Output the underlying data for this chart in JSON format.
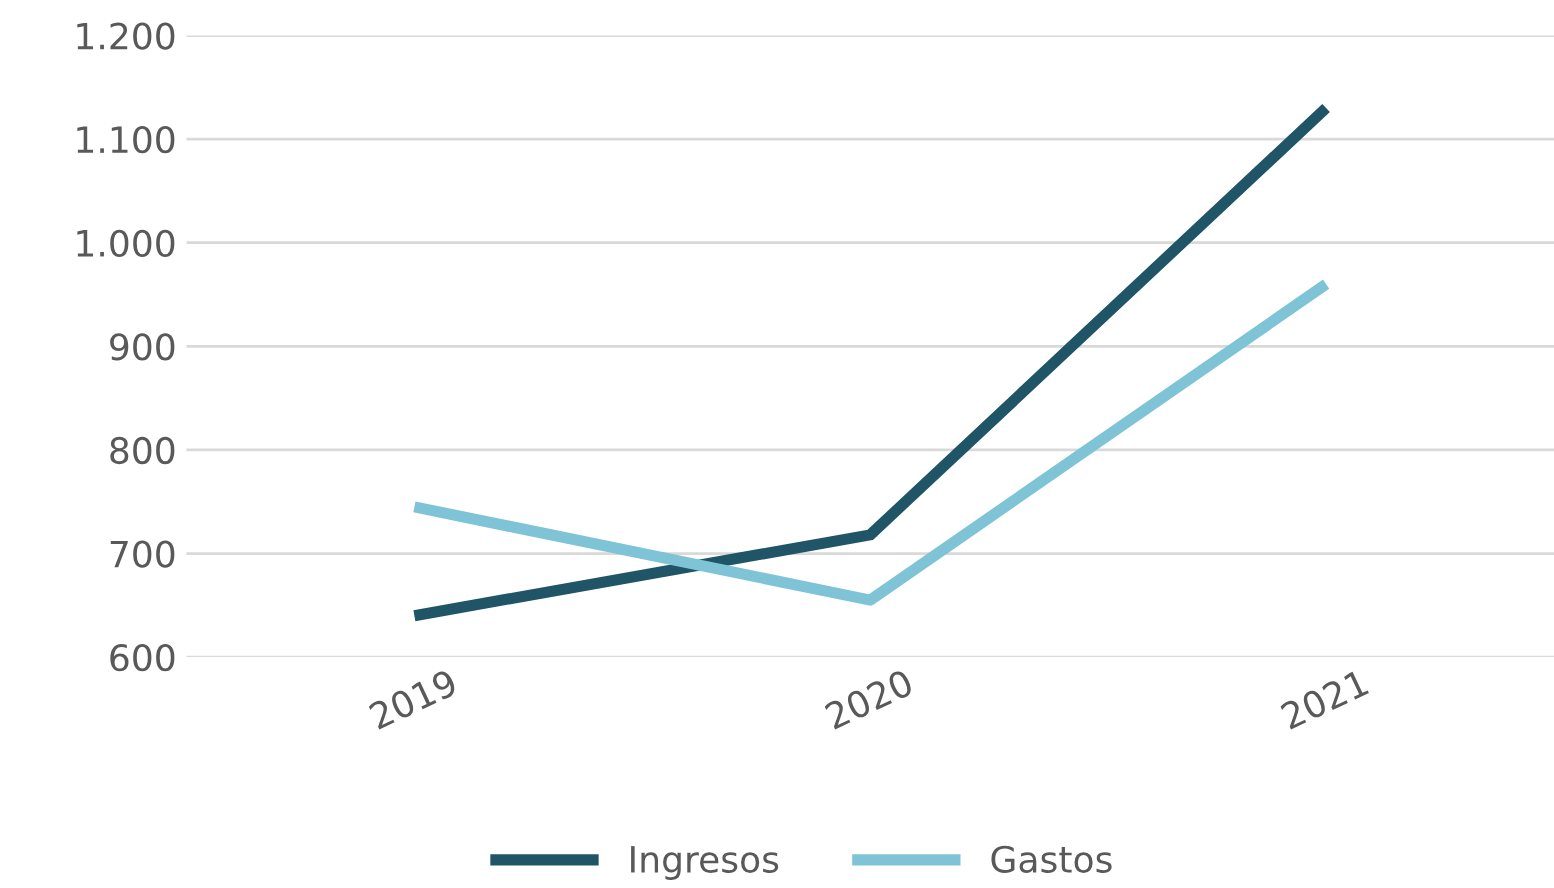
{
  "chart_data": {
    "type": "line",
    "categories": [
      "2019",
      "2020",
      "2021"
    ],
    "series": [
      {
        "name": "Ingresos",
        "color": "#1f5566",
        "values": [
          640,
          718,
          1130
        ]
      },
      {
        "name": "Gastos",
        "color": "#7fc4d6",
        "values": [
          745,
          655,
          960
        ]
      }
    ],
    "ylim": [
      600,
      1200
    ],
    "yticks": [
      600,
      700,
      800,
      900,
      {
        "value": 1000,
        "label": "1.000"
      },
      {
        "value": 1100,
        "label": "1.100"
      },
      {
        "value": 1200,
        "label": "1.200"
      }
    ],
    "grid": "y",
    "legend": "bottom",
    "marker": "none",
    "line_style": "solid"
  }
}
